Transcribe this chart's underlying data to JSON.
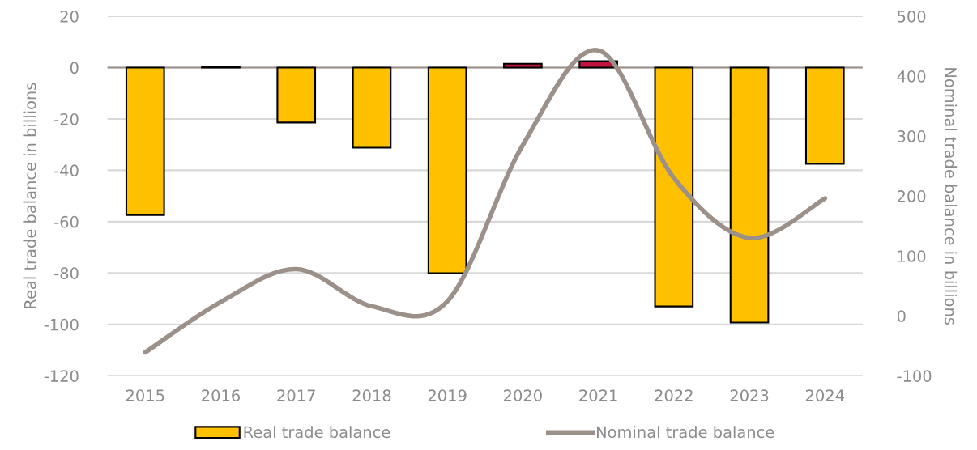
{
  "chart_data": {
    "type": "bar",
    "ylabel": "Real trade balance in billions",
    "y2label": "Nominal trade balance in billions",
    "categories": [
      "2015",
      "2016",
      "2017",
      "2018",
      "2019",
      "2020",
      "2021",
      "2022",
      "2023",
      "2024"
    ],
    "series": [
      {
        "name": "Real trade balance",
        "color": "#ffc000",
        "colors": [
          "#ffc000",
          "#c0143c",
          "#ffc000",
          "#ffc000",
          "#ffc000",
          "#c0143c",
          "#c0143c",
          "#ffc000",
          "#ffc000",
          "#ffc000"
        ],
        "values": [
          -57.4,
          0.4,
          -21.4,
          -31.2,
          -80.1,
          1.5,
          2.5,
          -93,
          -99.3,
          -37.5
        ]
      },
      {
        "name": "Nominal trade balance",
        "type": "line",
        "axis": "y2",
        "color": "#9b918a",
        "values": [
          -61,
          23,
          78,
          16,
          24,
          285,
          443,
          230,
          130,
          196
        ]
      }
    ],
    "ylim": [
      -120,
      20
    ],
    "yticks": [
      -120,
      -100,
      -80,
      -60,
      -40,
      -20,
      0,
      20
    ],
    "y2lim": [
      -100,
      500
    ],
    "y2ticks": [
      -100,
      0,
      100,
      200,
      300,
      400,
      500
    ],
    "grid": "y",
    "legend": "bottom",
    "marker": "none",
    "line_style": "solid"
  }
}
